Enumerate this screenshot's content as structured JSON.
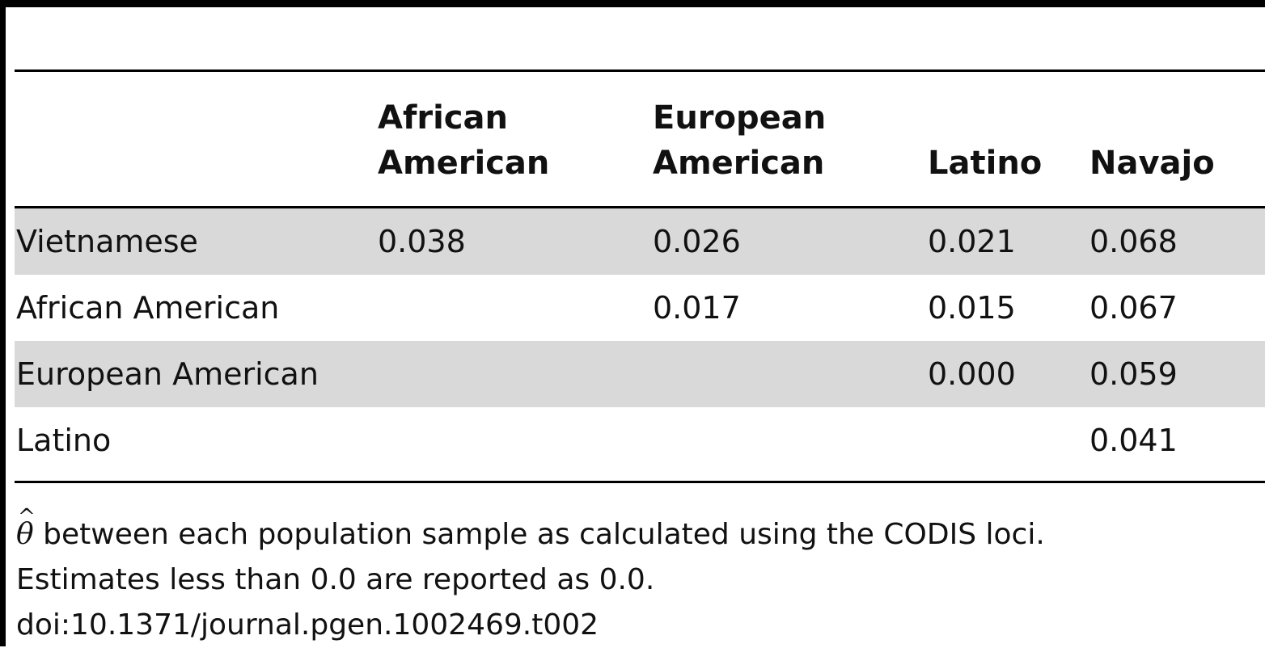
{
  "table": {
    "columns": [
      "African\nAmerican",
      "European\nAmerican",
      "Latino",
      "Navajo"
    ],
    "rows": [
      {
        "label": "Vietnamese",
        "values": [
          "0.038",
          "0.026",
          "0.021",
          "0.068"
        ]
      },
      {
        "label": "African American",
        "values": [
          "",
          "0.017",
          "0.015",
          "0.067"
        ]
      },
      {
        "label": "European American",
        "values": [
          "",
          "",
          "0.000",
          "0.059"
        ]
      },
      {
        "label": "Latino",
        "values": [
          "",
          "",
          "",
          "0.041"
        ]
      }
    ]
  },
  "footnotes": {
    "theta_symbol": "θ",
    "theta_hat": "^",
    "line1_rest": " between each population sample as calculated using the CODIS loci.",
    "line2": "Estimates less than 0.0 are reported as 0.0.",
    "doi": "doi:10.1371/journal.pgen.1002469.t002"
  }
}
